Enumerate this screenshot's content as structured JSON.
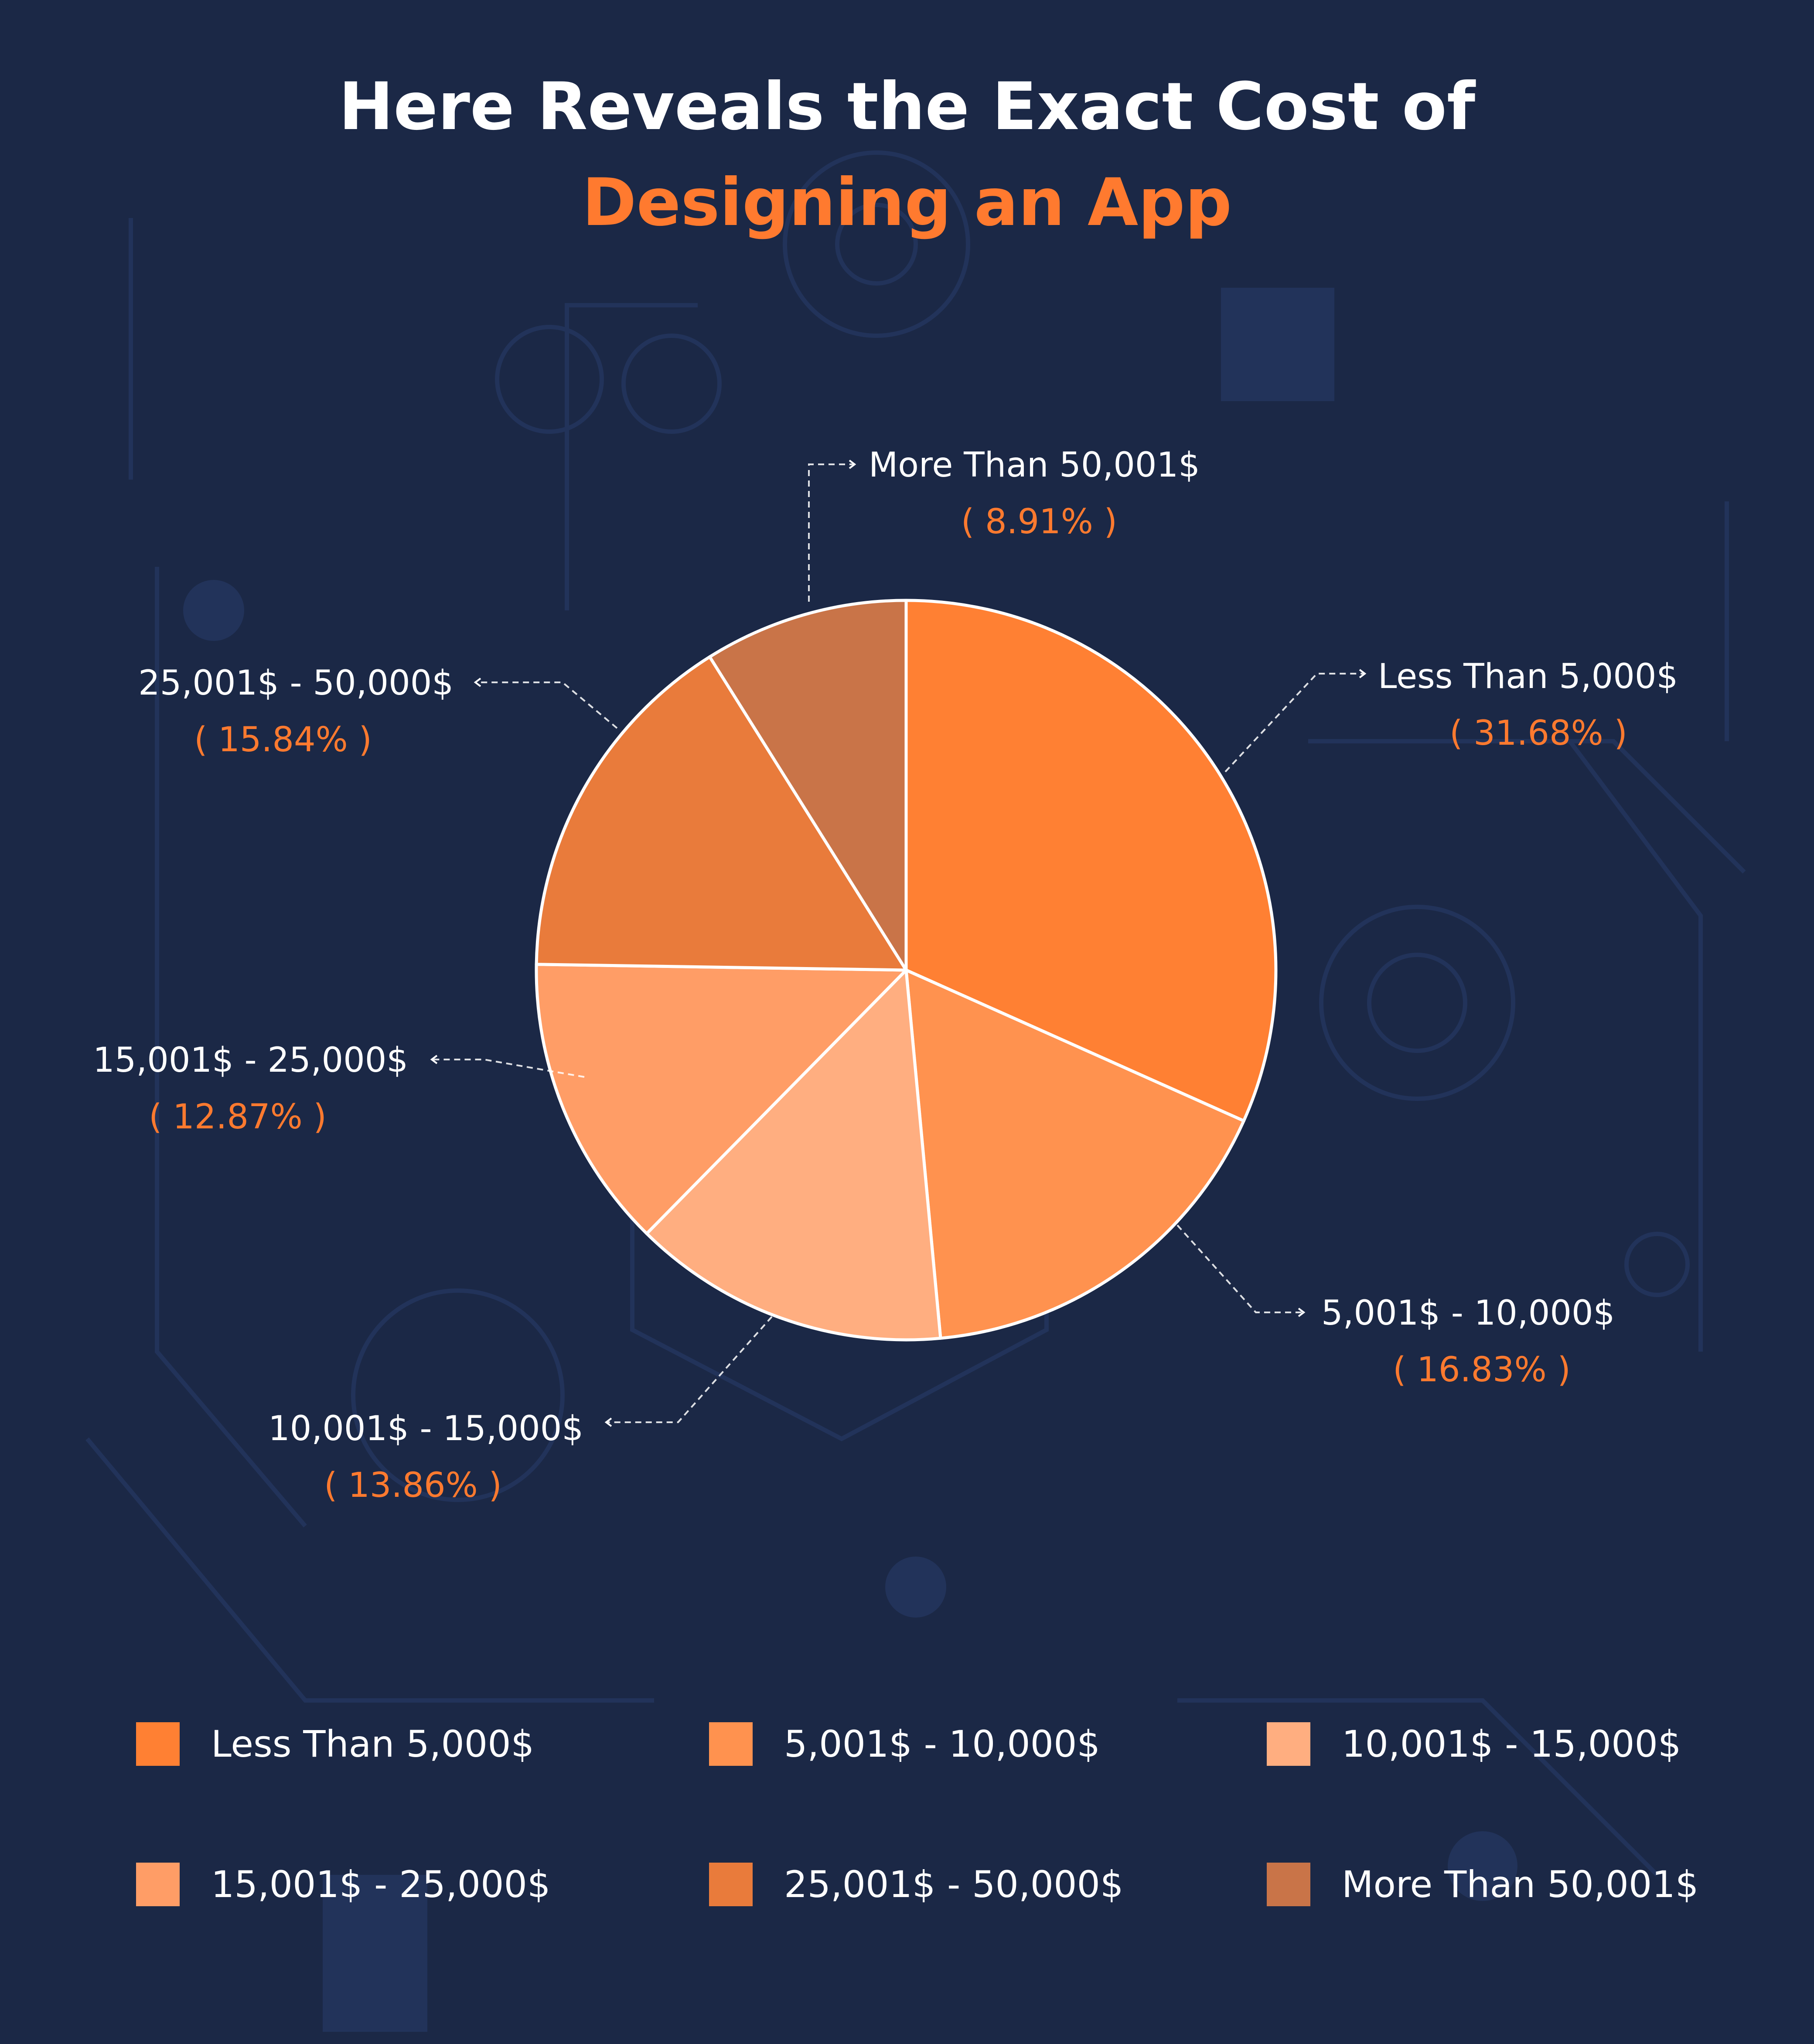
{
  "title_line1": "Here Reveals the Exact Cost of",
  "title_line2": "Designing an App",
  "colors": {
    "background": "#1b2846",
    "title_white": "#ffffff",
    "accent": "#ff7a2f"
  },
  "chart_data": {
    "type": "pie",
    "title": "Here Reveals the Exact Cost of Designing an App",
    "slices": [
      {
        "label": "Less Than 5,000$",
        "value": 31.68,
        "pct_label": "( 31.68% )",
        "color": "#ff8033"
      },
      {
        "label": "5,001$ - 10,000$",
        "value": 16.83,
        "pct_label": "( 16.83% )",
        "color": "#ff924f"
      },
      {
        "label": "10,001$ - 15,000$",
        "value": 13.86,
        "pct_label": "( 13.86% )",
        "color": "#ffae80"
      },
      {
        "label": "15,001$ - 25,000$",
        "value": 12.87,
        "pct_label": "( 12.87% )",
        "color": "#ff9d66"
      },
      {
        "label": "25,001$ - 50,000$",
        "value": 15.84,
        "pct_label": "( 15.84% )",
        "color": "#e97b3b"
      },
      {
        "label": "More Than 50,001$",
        "value": 8.91,
        "pct_label": "( 8.91% )",
        "color": "#c97448"
      }
    ],
    "legend_placement": "bottom"
  }
}
